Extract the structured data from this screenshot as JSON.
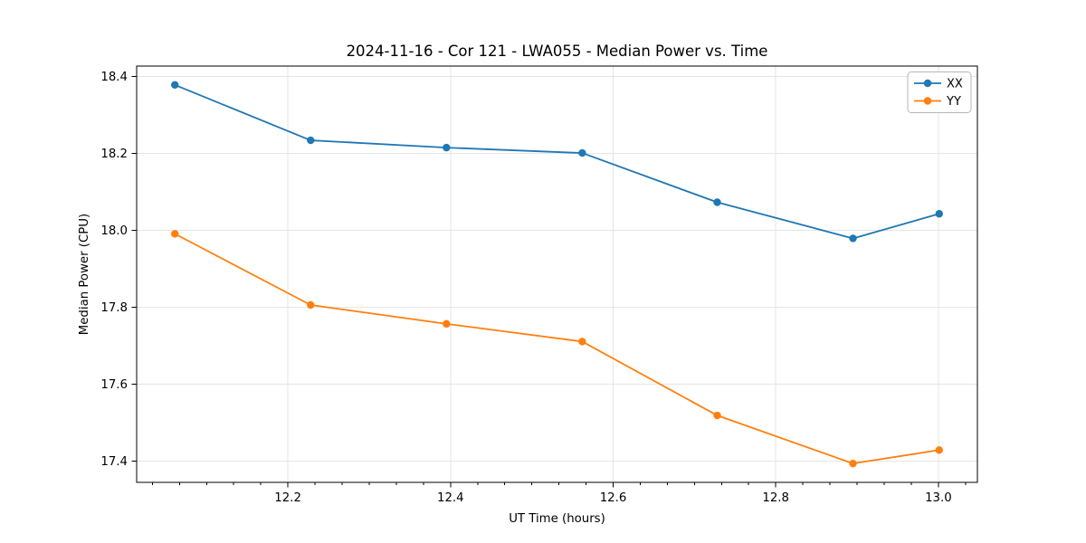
{
  "title": "2024-11-16 - Cor 121 - LWA055 - Median Power vs. Time",
  "chart_data": {
    "type": "line",
    "title": "2024-11-16 - Cor 121 - LWA055 - Median Power vs. Time",
    "xlabel": "UT Time (hours)",
    "ylabel": "Median Power (CPU)",
    "x": [
      12.061,
      12.228,
      12.395,
      12.562,
      12.728,
      12.895,
      13.001
    ],
    "series": [
      {
        "name": "XX",
        "color": "#1f77b4",
        "values": [
          18.378,
          18.234,
          18.215,
          18.201,
          18.073,
          17.979,
          18.043
        ]
      },
      {
        "name": "YY",
        "color": "#ff7f0e",
        "values": [
          17.991,
          17.806,
          17.757,
          17.711,
          17.519,
          17.394,
          17.429
        ]
      }
    ],
    "xlim": [
      12.014,
      13.048
    ],
    "ylim": [
      17.345,
      18.427
    ],
    "xticks": [
      12.2,
      12.4,
      12.6,
      12.8,
      13.0
    ],
    "yticks": [
      17.4,
      17.6,
      17.8,
      18.0,
      18.2,
      18.4
    ],
    "x_minor_subdivisions": 6,
    "grid": true,
    "grid_color": "#e5e5e5",
    "legend_position": "upper right",
    "marker": "o",
    "spine_color": "#000000",
    "background": "#ffffff"
  }
}
